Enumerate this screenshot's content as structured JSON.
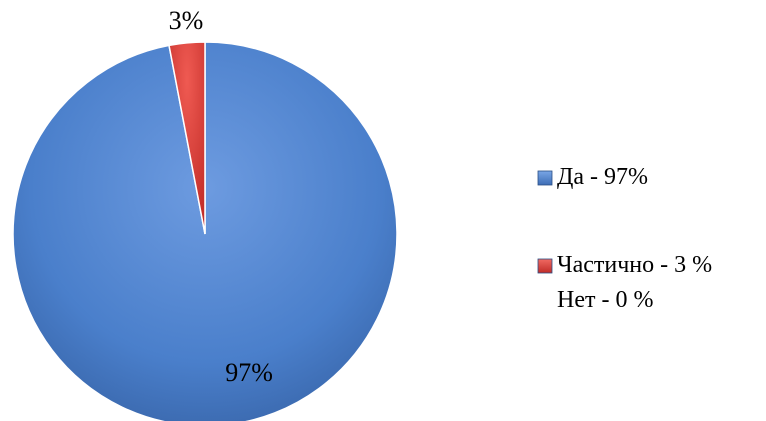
{
  "chart_data": {
    "type": "pie",
    "title": "",
    "slices": [
      {
        "label": "Да - 97%",
        "value": 97,
        "data_label": "97%",
        "color": "#4a7fcb"
      },
      {
        "label": "Частично - 3 %",
        "value": 3,
        "data_label": "3%",
        "color": "#d33a35"
      },
      {
        "label": "Нет - 0 %",
        "value": 0,
        "data_label": "",
        "color": null
      }
    ],
    "legend": {
      "placement": "right",
      "items": [
        "Да - 97%",
        "Частично - 3 %",
        "Нет - 0 %"
      ]
    },
    "start_angle_deg": 0,
    "direction": "clockwise"
  }
}
